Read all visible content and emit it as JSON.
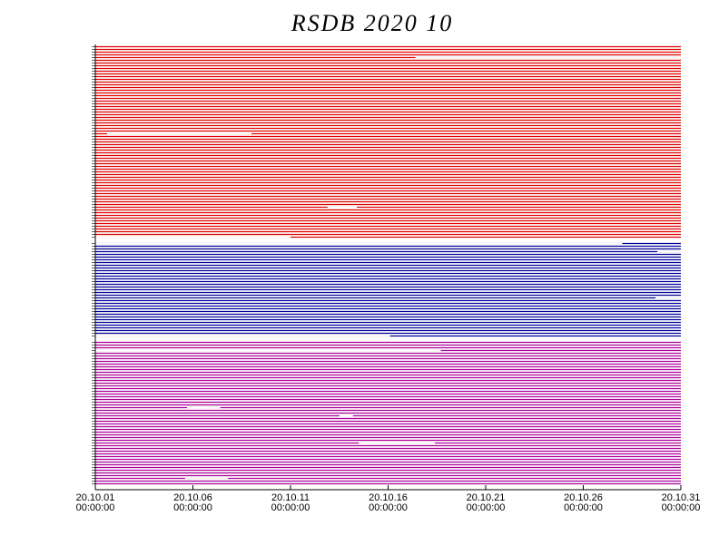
{
  "chart_data": {
    "type": "availability",
    "title": "RSDB  2020  10",
    "xlim": [
      0,
      30
    ],
    "xticks": [
      {
        "value": 0,
        "label": "20.10.01\n00:00:00"
      },
      {
        "value": 5,
        "label": "20.10.06\n00:00:00"
      },
      {
        "value": 10,
        "label": "20.10.11\n00:00:00"
      },
      {
        "value": 15,
        "label": "20.10.16\n00:00:00"
      },
      {
        "value": 20,
        "label": "20.10.21\n00:00:00"
      },
      {
        "value": 25,
        "label": "20.10.26\n00:00:00"
      },
      {
        "value": 30,
        "label": "20.10.31\n00:00:00"
      }
    ],
    "series": [
      {
        "color": "#dd0000",
        "rows": 71,
        "gaps": [
          {
            "row": 4,
            "start": 16.4,
            "end": 30
          },
          {
            "row": 32,
            "start": 0.6,
            "end": 8.0
          },
          {
            "row": 59,
            "start": 11.9,
            "end": 13.4
          },
          {
            "row": 70,
            "start": 0,
            "end": 10.0
          }
        ]
      },
      {
        "color": "#000099",
        "rows": 35,
        "gaps": [
          {
            "row": 0,
            "start": 0,
            "end": 27.0
          },
          {
            "row": 3,
            "start": 28.8,
            "end": 30
          },
          {
            "row": 20,
            "start": 28.7,
            "end": 30
          },
          {
            "row": 34,
            "start": 0,
            "end": 15.1
          }
        ]
      },
      {
        "color": "#aa0099",
        "rows": 53,
        "gaps": [
          {
            "row": 3,
            "start": 0,
            "end": 17.7
          },
          {
            "row": 24,
            "start": 4.7,
            "end": 6.4
          },
          {
            "row": 27,
            "start": 12.5,
            "end": 13.2
          },
          {
            "row": 37,
            "start": 13.5,
            "end": 17.4
          },
          {
            "row": 50,
            "start": 4.6,
            "end": 6.8
          }
        ]
      }
    ]
  }
}
